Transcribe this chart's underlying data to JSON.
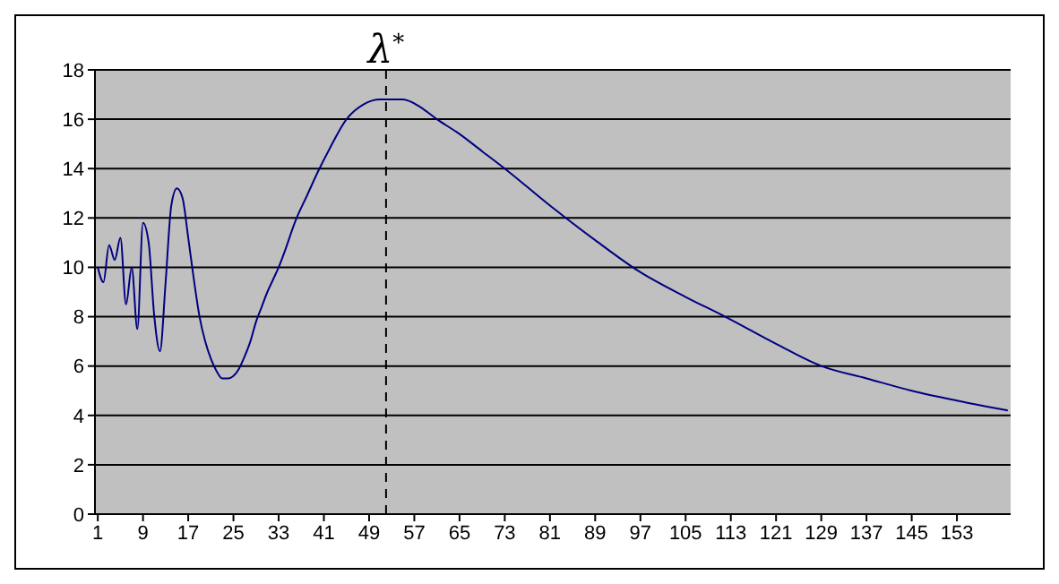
{
  "chart_data": {
    "type": "line",
    "x": [
      1,
      2,
      3,
      4,
      5,
      6,
      7,
      8,
      9,
      10,
      11,
      12,
      13,
      14,
      15,
      16,
      17,
      18,
      19,
      20,
      21,
      22,
      23,
      24,
      25,
      26,
      27,
      28,
      29,
      30,
      31,
      32,
      33,
      34,
      36,
      38,
      40,
      42,
      45,
      48,
      51,
      55,
      58,
      61,
      65,
      69,
      73,
      81,
      89,
      97,
      105,
      112,
      121,
      129,
      137,
      145,
      153,
      162
    ],
    "series": [
      {
        "color": "#000080",
        "values": [
          10.0,
          9.4,
          10.9,
          10.3,
          11.2,
          8.5,
          10.0,
          7.5,
          11.8,
          11.0,
          8.0,
          6.6,
          9.4,
          12.5,
          13.2,
          12.8,
          11.2,
          9.5,
          8.0,
          7.0,
          6.3,
          5.8,
          5.5,
          5.5,
          5.6,
          5.9,
          6.4,
          7.0,
          7.8,
          8.4,
          9.0,
          9.5,
          10.0,
          10.6,
          11.9,
          12.9,
          13.9,
          14.8,
          16.0,
          16.6,
          16.8,
          16.8,
          16.5,
          16.0,
          15.4,
          14.7,
          14.0,
          12.5,
          11.1,
          9.8,
          8.8,
          8.0,
          6.9,
          6.0,
          5.5,
          5.0,
          4.6,
          4.2
        ]
      }
    ],
    "xlim": [
      0.5,
      162.5
    ],
    "xticks": [
      1,
      9,
      17,
      25,
      33,
      41,
      49,
      57,
      65,
      73,
      81,
      89,
      97,
      105,
      113,
      121,
      129,
      137,
      145,
      153
    ],
    "ylim": [
      0,
      18
    ],
    "yticks": [
      0,
      2,
      4,
      6,
      8,
      10,
      12,
      14,
      16,
      18
    ],
    "grid": "y",
    "marker": "none",
    "line_style": "solid",
    "ref_lines": [
      {
        "axis": "x",
        "value": 52,
        "label": "λ$^{*}$",
        "color": "#000000",
        "line_style": "dashed"
      }
    ]
  }
}
